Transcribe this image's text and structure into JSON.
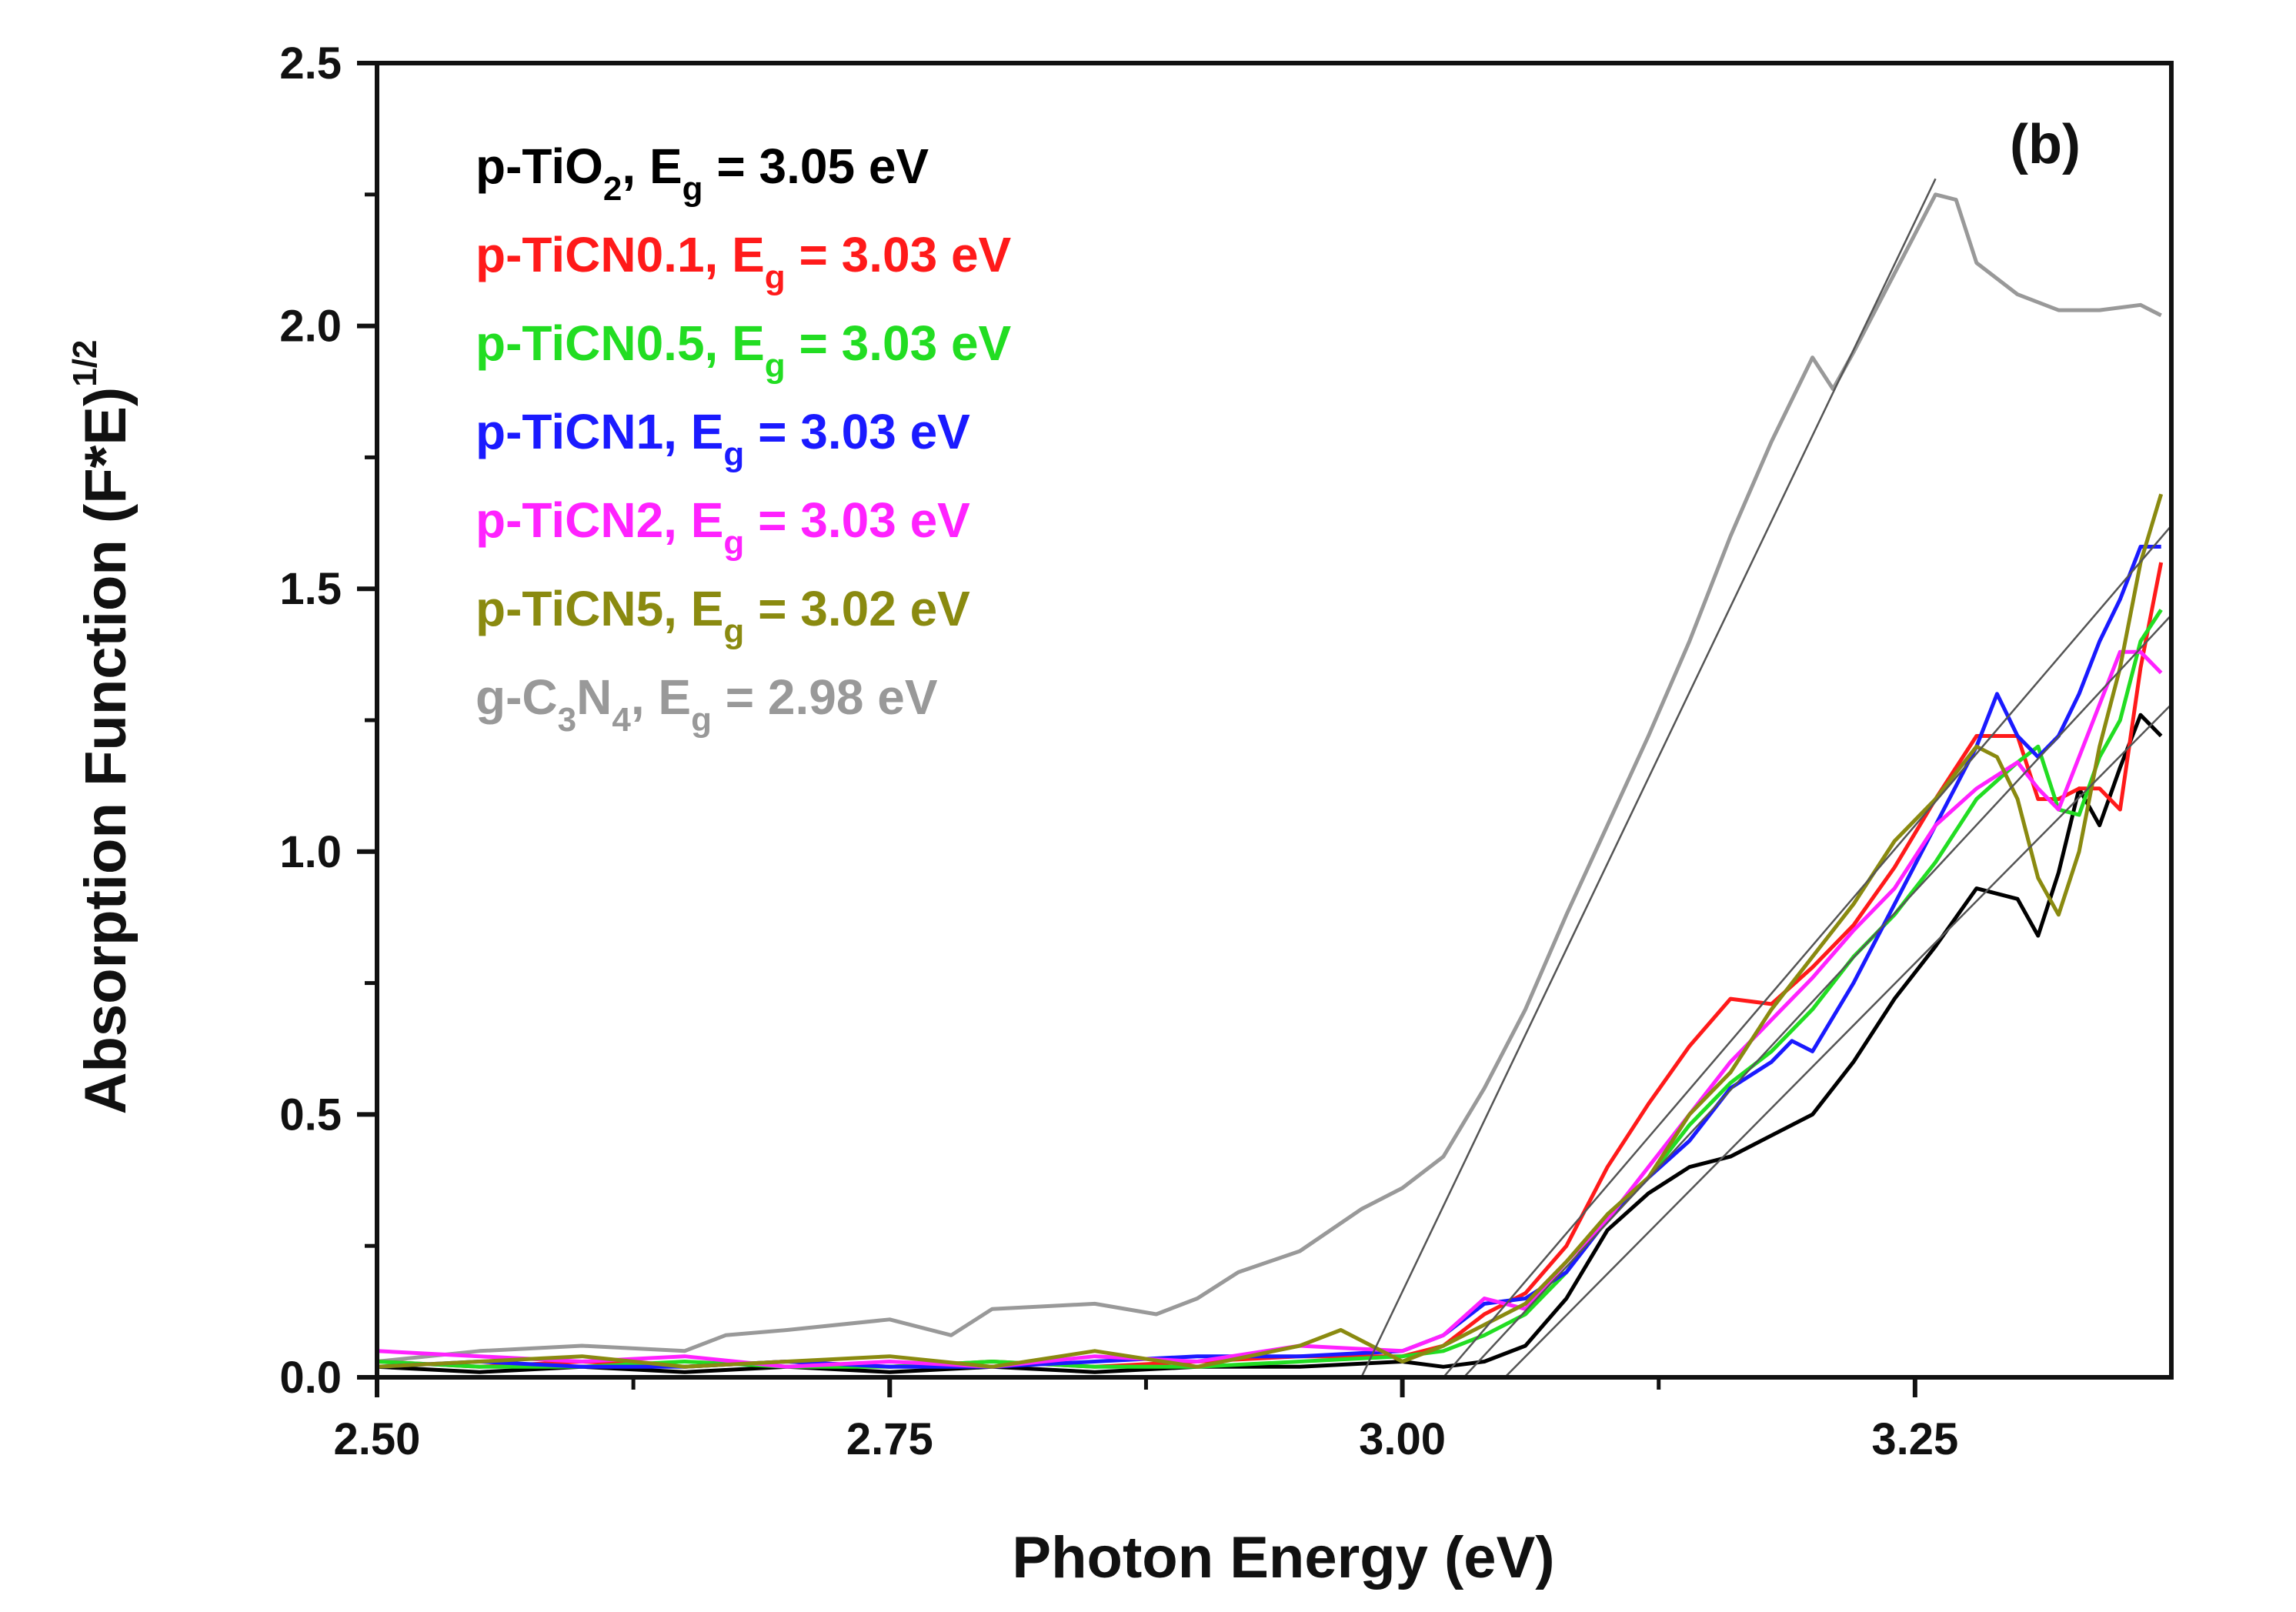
{
  "chart_data": {
    "type": "line",
    "panel_label": "(b)",
    "xlabel": "Photon Energy (eV)",
    "ylabel": "Absorption Function (F*E)",
    "ylabel_sup": "1/2",
    "xlim": [
      2.5,
      3.375
    ],
    "ylim": [
      0.0,
      2.5
    ],
    "xticks": [
      2.5,
      2.75,
      3.0,
      3.25
    ],
    "xtick_labels": [
      "2.50",
      "2.75",
      "3.00",
      "3.25"
    ],
    "yticks": [
      0.0,
      0.5,
      1.0,
      1.5,
      2.0,
      2.5
    ],
    "ytick_labels": [
      "0.0",
      "0.5",
      "1.0",
      "1.5",
      "2.0",
      "2.5"
    ],
    "legend": [
      {
        "name": "p-TiO",
        "sub1": "2",
        "mid": ", E",
        "sub2": "g",
        "tail": " = 3.05 eV",
        "color": "#000000"
      },
      {
        "name": "p-TiCN0.1",
        "sub1": "",
        "mid": ", E",
        "sub2": "g",
        "tail": " = 3.03 eV",
        "color": "#ff1a1a"
      },
      {
        "name": "p-TiCN0.5",
        "sub1": "",
        "mid": ", E",
        "sub2": "g",
        "tail": " = 3.03 eV",
        "color": "#22dd22"
      },
      {
        "name": "p-TiCN1",
        "sub1": "",
        "mid": ", E",
        "sub2": "g",
        "tail": " = 3.03 eV",
        "color": "#1a1aff"
      },
      {
        "name": "p-TiCN2",
        "sub1": "",
        "mid": ", E",
        "sub2": "g",
        "tail": " = 3.03 eV",
        "color": "#ff22ff"
      },
      {
        "name": "p-TiCN5",
        "sub1": "",
        "mid": ", E",
        "sub2": "g",
        "tail": " = 3.02 eV",
        "color": "#8a8a10"
      },
      {
        "name": "g-C",
        "sub1": "3",
        "mid": "N",
        "sub2": "4",
        "tail": ", E",
        "sub3": "g",
        "tail2": " = 2.98 eV",
        "color": "#999999"
      }
    ],
    "series": [
      {
        "name": "p-TiO2",
        "color": "#000000",
        "x": [
          2.5,
          2.55,
          2.6,
          2.65,
          2.7,
          2.75,
          2.8,
          2.85,
          2.9,
          2.95,
          3.0,
          3.02,
          3.04,
          3.06,
          3.08,
          3.1,
          3.12,
          3.14,
          3.16,
          3.18,
          3.2,
          3.22,
          3.24,
          3.26,
          3.28,
          3.3,
          3.31,
          3.32,
          3.33,
          3.34,
          3.35,
          3.36,
          3.37
        ],
        "y": [
          0.02,
          0.01,
          0.02,
          0.01,
          0.02,
          0.01,
          0.02,
          0.01,
          0.02,
          0.02,
          0.03,
          0.02,
          0.03,
          0.06,
          0.15,
          0.28,
          0.35,
          0.4,
          0.42,
          0.46,
          0.5,
          0.6,
          0.72,
          0.82,
          0.93,
          0.91,
          0.84,
          0.96,
          1.12,
          1.05,
          1.16,
          1.26,
          1.22
        ]
      },
      {
        "name": "p-TiCN0.1",
        "color": "#ff1a1a",
        "x": [
          2.5,
          2.55,
          2.6,
          2.65,
          2.7,
          2.75,
          2.8,
          2.85,
          2.9,
          2.95,
          3.0,
          3.02,
          3.04,
          3.06,
          3.08,
          3.1,
          3.12,
          3.14,
          3.16,
          3.18,
          3.2,
          3.22,
          3.24,
          3.26,
          3.28,
          3.3,
          3.31,
          3.32,
          3.33,
          3.34,
          3.35,
          3.36,
          3.37
        ],
        "y": [
          0.03,
          0.02,
          0.03,
          0.02,
          0.03,
          0.02,
          0.03,
          0.02,
          0.03,
          0.04,
          0.04,
          0.06,
          0.12,
          0.16,
          0.25,
          0.4,
          0.52,
          0.63,
          0.72,
          0.71,
          0.78,
          0.86,
          0.97,
          1.1,
          1.22,
          1.22,
          1.1,
          1.1,
          1.12,
          1.12,
          1.08,
          1.35,
          1.55
        ]
      },
      {
        "name": "p-TiCN0.5",
        "color": "#22dd22",
        "x": [
          2.5,
          2.55,
          2.6,
          2.65,
          2.7,
          2.75,
          2.8,
          2.85,
          2.9,
          2.95,
          3.0,
          3.02,
          3.04,
          3.06,
          3.08,
          3.1,
          3.12,
          3.14,
          3.16,
          3.18,
          3.2,
          3.22,
          3.24,
          3.26,
          3.28,
          3.3,
          3.31,
          3.32,
          3.33,
          3.34,
          3.35,
          3.36,
          3.37
        ],
        "y": [
          0.03,
          0.02,
          0.02,
          0.03,
          0.02,
          0.02,
          0.03,
          0.02,
          0.02,
          0.03,
          0.04,
          0.05,
          0.08,
          0.12,
          0.2,
          0.31,
          0.38,
          0.48,
          0.56,
          0.62,
          0.7,
          0.8,
          0.88,
          0.98,
          1.1,
          1.17,
          1.2,
          1.08,
          1.07,
          1.18,
          1.25,
          1.4,
          1.46
        ]
      },
      {
        "name": "p-TiCN1",
        "color": "#1a1aff",
        "x": [
          2.5,
          2.55,
          2.6,
          2.65,
          2.7,
          2.75,
          2.8,
          2.85,
          2.9,
          2.95,
          3.0,
          3.02,
          3.04,
          3.06,
          3.08,
          3.1,
          3.12,
          3.14,
          3.16,
          3.18,
          3.19,
          3.2,
          3.22,
          3.24,
          3.26,
          3.28,
          3.29,
          3.3,
          3.31,
          3.32,
          3.33,
          3.34,
          3.35,
          3.36,
          3.37
        ],
        "y": [
          0.02,
          0.03,
          0.02,
          0.02,
          0.03,
          0.02,
          0.02,
          0.03,
          0.04,
          0.04,
          0.05,
          0.08,
          0.14,
          0.15,
          0.2,
          0.3,
          0.38,
          0.45,
          0.55,
          0.6,
          0.64,
          0.62,
          0.75,
          0.9,
          1.05,
          1.2,
          1.3,
          1.22,
          1.18,
          1.22,
          1.3,
          1.4,
          1.48,
          1.58,
          1.58
        ]
      },
      {
        "name": "p-TiCN2",
        "color": "#ff22ff",
        "x": [
          2.5,
          2.55,
          2.6,
          2.65,
          2.7,
          2.75,
          2.8,
          2.85,
          2.9,
          2.95,
          3.0,
          3.02,
          3.04,
          3.06,
          3.08,
          3.1,
          3.12,
          3.14,
          3.16,
          3.18,
          3.2,
          3.22,
          3.24,
          3.26,
          3.28,
          3.3,
          3.31,
          3.32,
          3.33,
          3.34,
          3.35,
          3.36,
          3.37
        ],
        "y": [
          0.05,
          0.04,
          0.03,
          0.04,
          0.02,
          0.03,
          0.02,
          0.04,
          0.03,
          0.06,
          0.05,
          0.08,
          0.15,
          0.13,
          0.22,
          0.3,
          0.4,
          0.5,
          0.6,
          0.68,
          0.76,
          0.85,
          0.93,
          1.05,
          1.12,
          1.17,
          1.12,
          1.08,
          1.18,
          1.28,
          1.38,
          1.38,
          1.34
        ]
      },
      {
        "name": "p-TiCN5",
        "color": "#8a8a10",
        "x": [
          2.5,
          2.55,
          2.6,
          2.65,
          2.7,
          2.75,
          2.8,
          2.85,
          2.9,
          2.95,
          2.97,
          3.0,
          3.02,
          3.04,
          3.06,
          3.08,
          3.1,
          3.12,
          3.14,
          3.16,
          3.18,
          3.2,
          3.22,
          3.24,
          3.26,
          3.28,
          3.29,
          3.3,
          3.31,
          3.32,
          3.33,
          3.34,
          3.35,
          3.36,
          3.37
        ],
        "y": [
          0.02,
          0.03,
          0.04,
          0.02,
          0.03,
          0.04,
          0.02,
          0.05,
          0.02,
          0.06,
          0.09,
          0.03,
          0.06,
          0.1,
          0.14,
          0.22,
          0.31,
          0.38,
          0.5,
          0.58,
          0.7,
          0.8,
          0.9,
          1.02,
          1.1,
          1.2,
          1.18,
          1.1,
          0.95,
          0.88,
          1.0,
          1.2,
          1.35,
          1.55,
          1.68
        ]
      },
      {
        "name": "g-C3N4",
        "color": "#999999",
        "x": [
          2.5,
          2.55,
          2.6,
          2.65,
          2.67,
          2.7,
          2.75,
          2.78,
          2.8,
          2.85,
          2.88,
          2.9,
          2.92,
          2.95,
          2.98,
          3.0,
          3.02,
          3.04,
          3.06,
          3.08,
          3.1,
          3.12,
          3.14,
          3.16,
          3.18,
          3.2,
          3.21,
          3.22,
          3.24,
          3.26,
          3.27,
          3.28,
          3.3,
          3.32,
          3.34,
          3.36,
          3.37
        ],
        "y": [
          0.03,
          0.05,
          0.06,
          0.05,
          0.08,
          0.09,
          0.11,
          0.08,
          0.13,
          0.14,
          0.12,
          0.15,
          0.2,
          0.24,
          0.32,
          0.36,
          0.42,
          0.55,
          0.7,
          0.88,
          1.05,
          1.22,
          1.4,
          1.6,
          1.78,
          1.94,
          1.88,
          1.95,
          2.1,
          2.25,
          2.24,
          2.12,
          2.06,
          2.03,
          2.03,
          2.04,
          2.02
        ]
      }
    ],
    "fit_lines": [
      {
        "name": "fit-g-C3N4",
        "x": [
          2.98,
          3.26
        ],
        "y": [
          0.0,
          2.28
        ]
      },
      {
        "name": "fit-p-TiCN5",
        "x": [
          3.02,
          3.375
        ],
        "y": [
          0.0,
          1.62
        ]
      },
      {
        "name": "fit-p-TiCN",
        "x": [
          3.03,
          3.375
        ],
        "y": [
          0.0,
          1.45
        ]
      },
      {
        "name": "fit-p-TiO2",
        "x": [
          3.05,
          3.375
        ],
        "y": [
          0.0,
          1.28
        ]
      }
    ]
  }
}
